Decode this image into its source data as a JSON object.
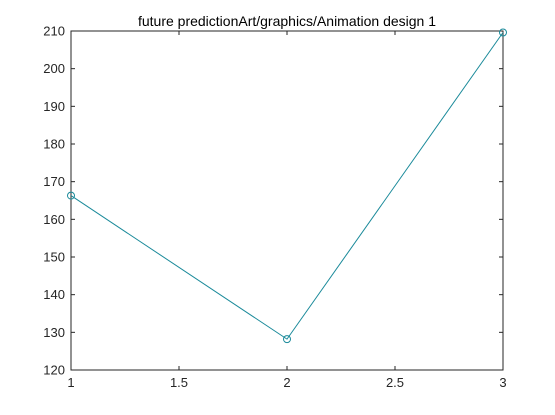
{
  "chart_data": {
    "type": "line",
    "title": "future predictionArt/graphics/Animation design 1",
    "xlabel": "",
    "ylabel": "",
    "x": [
      1,
      2,
      3
    ],
    "series": [
      {
        "values": [
          166.3,
          128.2,
          209.6
        ]
      }
    ],
    "xlim": [
      1,
      3
    ],
    "ylim": [
      120,
      210
    ],
    "xticks": [
      1,
      1.5,
      2,
      2.5,
      3
    ],
    "xtick_labels": [
      "1",
      "1.5",
      "2",
      "2.5",
      "3"
    ],
    "yticks": [
      120,
      130,
      140,
      150,
      160,
      170,
      180,
      190,
      200,
      210
    ],
    "ytick_labels": [
      "120",
      "130",
      "140",
      "150",
      "160",
      "170",
      "180",
      "190",
      "200",
      "210"
    ],
    "grid": false,
    "marker": "circle",
    "line_color": "#1a8a9a",
    "axis_color": "#262626"
  }
}
